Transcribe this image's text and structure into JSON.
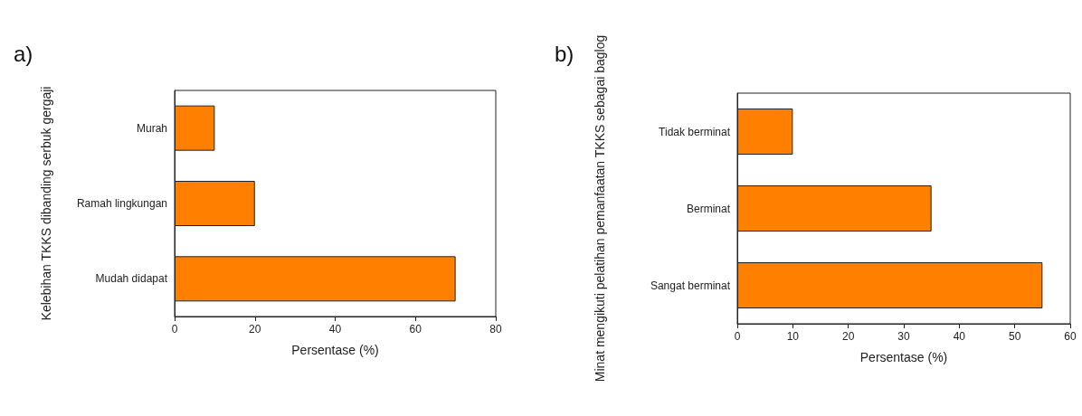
{
  "chart_data": [
    {
      "type": "bar",
      "orientation": "horizontal",
      "title": "a)",
      "xlabel": "Persentase (%)",
      "ylabel": "Kelebihan TKKS dibanding serbuk gergaji",
      "categories": [
        "Murah",
        "Ramah lingkungan",
        "Mudah didapat"
      ],
      "values": [
        10,
        20,
        70
      ],
      "color": "#ff8000",
      "xlim": [
        0,
        80
      ],
      "xticks": [
        0,
        20,
        40,
        60,
        80
      ]
    },
    {
      "type": "bar",
      "orientation": "horizontal",
      "title": "b)",
      "xlabel": "Persentase (%)",
      "ylabel": "Minat mengikuti pelatihan pemanfaatan TKKS sebagai baglog",
      "categories": [
        "Tidak berminat",
        "Berminat",
        "Sangat berminat"
      ],
      "values": [
        10,
        35,
        55
      ],
      "color": "#ff8000",
      "xlim": [
        0,
        60
      ],
      "xticks": [
        0,
        10,
        20,
        30,
        40,
        50,
        60
      ]
    }
  ]
}
